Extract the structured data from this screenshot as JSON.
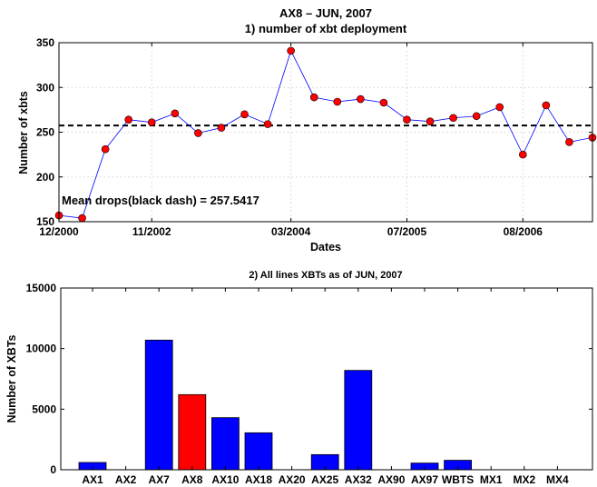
{
  "figure_title": "AX8 – JUN, 2007",
  "chart_data": [
    {
      "type": "line",
      "title": "1) number of xbt deployment",
      "xlabel": "Dates",
      "ylabel": "Number of xbts",
      "ylim": [
        150,
        350
      ],
      "yticks": [
        150,
        200,
        250,
        300,
        350
      ],
      "x_tick_labels": [
        "12/2000",
        "11/2002",
        "03/2004",
        "07/2005",
        "08/2006"
      ],
      "x_tick_index": [
        0,
        4,
        10,
        15,
        20
      ],
      "grid": true,
      "mean_line": 257.5417,
      "annotation": "Mean drops(black dash) = 257.5417",
      "series_color": "#0000ff",
      "marker_color": "#ff0000",
      "values": [
        157,
        154,
        231,
        264,
        261,
        271,
        249,
        255,
        270,
        259,
        341,
        289,
        284,
        287,
        283,
        264,
        262,
        266,
        268,
        278,
        225,
        280,
        239,
        244
      ]
    },
    {
      "type": "bar",
      "title": "2) All lines XBTs as of JUN, 2007",
      "xlabel": "",
      "ylabel": "Number of XBTs",
      "ylim": [
        0,
        15000
      ],
      "yticks": [
        0,
        5000,
        10000,
        15000
      ],
      "categories": [
        "AX1",
        "AX2",
        "AX7",
        "AX8",
        "AX10",
        "AX18",
        "AX20",
        "AX25",
        "AX32",
        "AX90",
        "AX97",
        "WBTS",
        "MX1",
        "MX2",
        "MX4"
      ],
      "values": [
        600,
        0,
        10700,
        6200,
        4300,
        3050,
        0,
        1250,
        8200,
        0,
        550,
        780,
        0,
        0,
        0
      ],
      "colors": [
        "#0000ff",
        "#0000ff",
        "#0000ff",
        "#ff0000",
        "#0000ff",
        "#0000ff",
        "#0000ff",
        "#0000ff",
        "#0000ff",
        "#0000ff",
        "#0000ff",
        "#0000ff",
        "#0000ff",
        "#0000ff",
        "#0000ff"
      ]
    }
  ]
}
